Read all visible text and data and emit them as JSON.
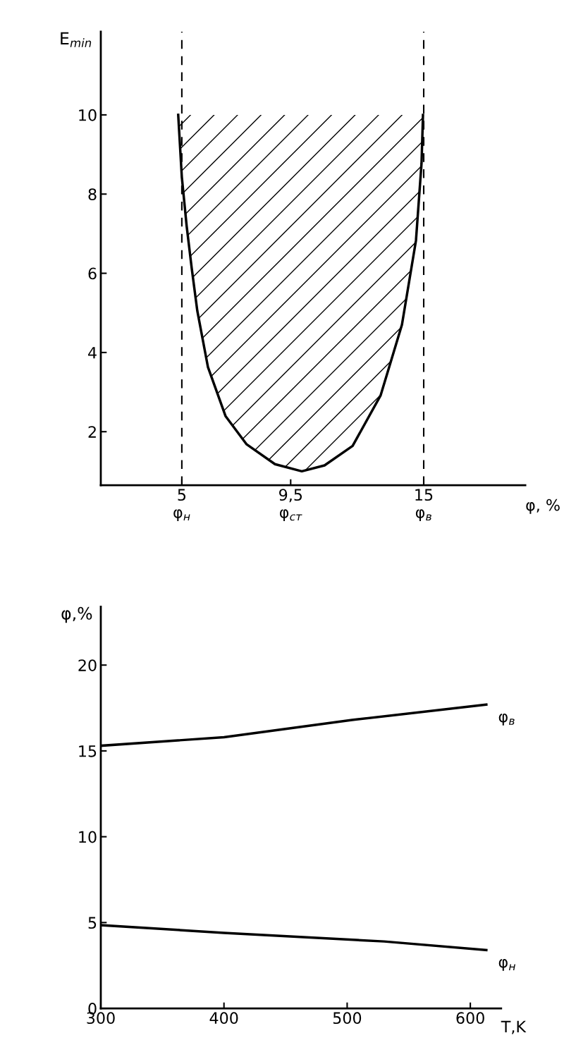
{
  "chart_data": [
    {
      "type": "line",
      "ylabel": "E$_{min}$",
      "xlabel": "φ, %",
      "xlim": [
        1.65,
        19.2
      ],
      "ylim": [
        0.65,
        12.1
      ],
      "xticks": [
        {
          "value": 5,
          "label": "5\nφ$_{н}$"
        },
        {
          "value": 9.5,
          "label": "9,5\nφ$_{ст}$"
        },
        {
          "value": 15,
          "label": "15\nφ$_{в}$"
        }
      ],
      "yticks": [
        2,
        4,
        6,
        8,
        10
      ],
      "grid": false,
      "legend": false,
      "series": [
        {
          "color": "#000000",
          "x": [
            4.85,
            5.0,
            5.2,
            5.41,
            5.64,
            6.08,
            6.81,
            7.68,
            8.85,
            9.96,
            10.9,
            12.06,
            13.22,
            14.1,
            14.68,
            14.91,
            14.97
          ],
          "values": [
            10,
            8.43,
            7.19,
            6.12,
            5.05,
            3.63,
            2.39,
            1.68,
            1.18,
            1.0,
            1.15,
            1.64,
            2.92,
            4.7,
            6.83,
            8.78,
            10.0
          ],
          "lower": [
            10,
            8.43,
            7.19,
            6.12,
            5.05,
            3.63,
            2.39,
            1.68,
            1.18,
            1.0,
            1.15,
            1.64,
            2.92,
            4.7,
            6.83,
            8.78,
            10.0
          ],
          "upper": [
            10,
            10,
            10,
            10,
            10,
            10,
            10,
            10,
            10,
            10,
            10,
            10,
            10,
            10,
            10,
            10,
            10
          ]
        }
      ],
      "ref_lines": [
        {
          "axis": "x",
          "value": 5,
          "color": "#000000",
          "line_style": "dashed"
        },
        {
          "axis": "x",
          "value": 15,
          "color": "#000000",
          "line_style": "dashed"
        }
      ]
    },
    {
      "type": "line",
      "ylabel": "φ,%",
      "xlabel": "T,K",
      "xlim": [
        300,
        625
      ],
      "ylim": [
        0,
        23.4
      ],
      "xticks": [
        300,
        400,
        500,
        600
      ],
      "yticks": [
        0,
        5,
        10,
        15,
        20
      ],
      "grid": false,
      "legend": false,
      "series": [
        {
          "name": "φ$_{в}$",
          "color": "#000000",
          "x": [
            300,
            400,
            504,
            613
          ],
          "values": [
            15.3,
            15.8,
            16.8,
            17.7
          ]
        },
        {
          "name": "φ$_{н}$",
          "color": "#000000",
          "x": [
            300,
            400,
            530,
            613
          ],
          "values": [
            4.85,
            4.4,
            3.9,
            3.4
          ]
        }
      ]
    }
  ]
}
